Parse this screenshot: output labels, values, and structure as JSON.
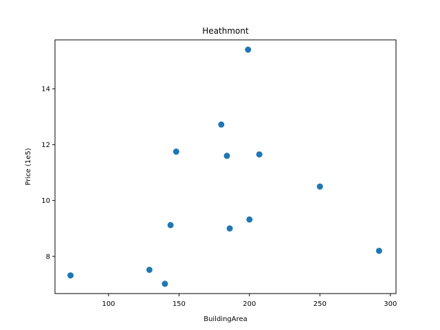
{
  "chart_data": {
    "type": "scatter",
    "title": "Heathmont",
    "xlabel": "BuildingArea",
    "ylabel": "Price (1e5)",
    "xlim": [
      62,
      304
    ],
    "ylim": [
      6.67,
      15.75
    ],
    "xticks": [
      100,
      150,
      200,
      250,
      300
    ],
    "yticks": [
      8,
      10,
      12,
      14
    ],
    "grid": false,
    "marker_color": "#1f77b4",
    "points": [
      {
        "x": 73,
        "y": 7.32
      },
      {
        "x": 129,
        "y": 7.52
      },
      {
        "x": 140,
        "y": 7.02
      },
      {
        "x": 144,
        "y": 9.12
      },
      {
        "x": 148,
        "y": 11.75
      },
      {
        "x": 180,
        "y": 12.72
      },
      {
        "x": 184,
        "y": 11.6
      },
      {
        "x": 186,
        "y": 9.0
      },
      {
        "x": 199,
        "y": 15.4
      },
      {
        "x": 200,
        "y": 9.32
      },
      {
        "x": 207,
        "y": 11.65
      },
      {
        "x": 250,
        "y": 10.5
      },
      {
        "x": 292,
        "y": 8.2
      }
    ]
  }
}
